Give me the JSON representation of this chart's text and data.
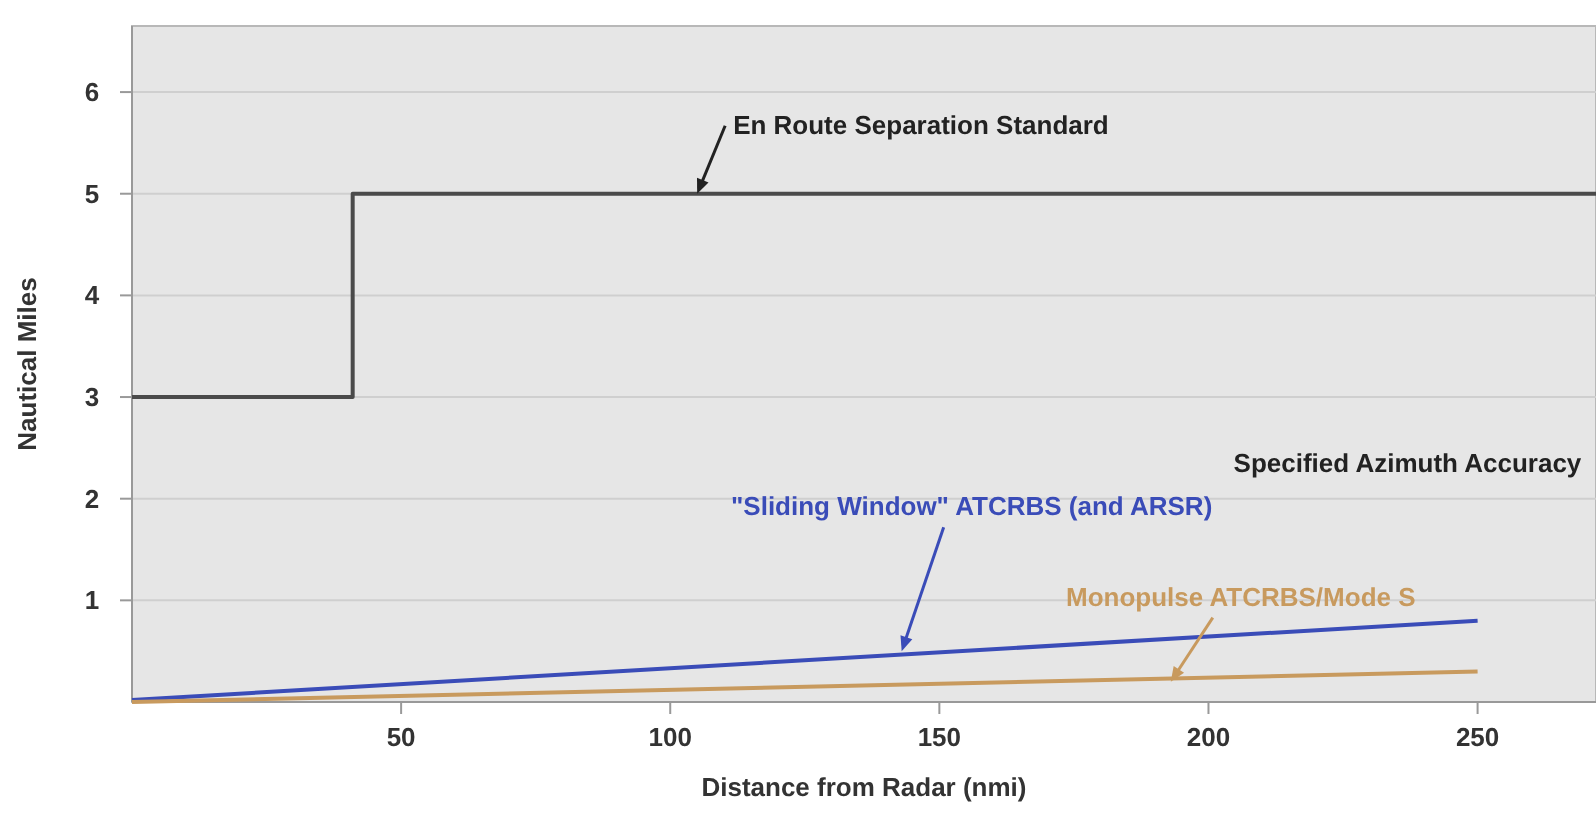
{
  "chart_data": {
    "type": "line",
    "xlabel": "Distance from Radar (nmi)",
    "ylabel": "Nautical Miles",
    "xlim": [
      0,
      272
    ],
    "ylim": [
      0,
      6.65
    ],
    "xticks": [
      50,
      100,
      150,
      200,
      250
    ],
    "yticks": [
      1,
      2,
      3,
      4,
      5,
      6
    ],
    "grid": "y",
    "marker": "none",
    "line_style": "solid",
    "series": [
      {
        "type": "step",
        "color": "#4a4a4a",
        "x": [
          0,
          41,
          272
        ],
        "values": [
          3,
          5,
          5
        ]
      },
      {
        "color": "#3a4cb8",
        "x": [
          0,
          250
        ],
        "values": [
          0.02,
          0.8
        ]
      },
      {
        "color": "#c89a5e",
        "x": [
          0,
          250
        ],
        "values": [
          0,
          0.3
        ]
      }
    ],
    "annotations": [
      {
        "text": "En Route Separation Standard",
        "x": 105,
        "y": 5
      },
      "Specified Azimuth Accuracy",
      {
        "text": "\"Sliding Window\" ATCRBS (and ARSR)",
        "x": 143,
        "y": 0.5
      },
      {
        "text": "Monopulse ATCRBS/Mode S",
        "x": 193,
        "y": 0.2
      }
    ]
  }
}
